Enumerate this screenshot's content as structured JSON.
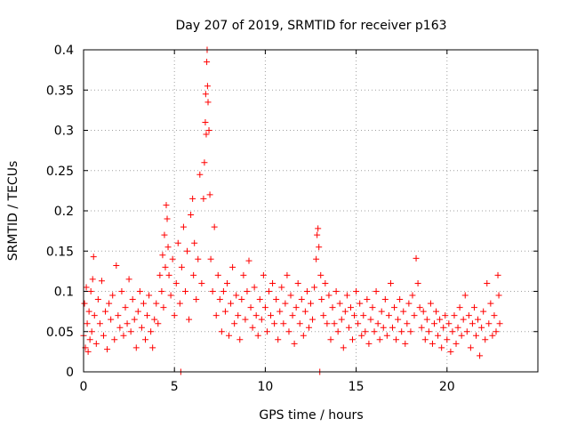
{
  "chart_data": {
    "type": "scatter",
    "title": "Day 207 of 2019, SRMTID for receiver p163",
    "xlabel": "GPS time / hours",
    "ylabel": "SRMTID / TECUs",
    "xlim": [
      0,
      25
    ],
    "ylim": [
      0,
      0.4
    ],
    "x_ticks": [
      0,
      5,
      10,
      15,
      20
    ],
    "x_tick_labels": [
      "0",
      "5",
      "10",
      "15",
      "20"
    ],
    "y_ticks": [
      0,
      0.05,
      0.1,
      0.15,
      0.2,
      0.25,
      0.3,
      0.35,
      0.4
    ],
    "y_tick_labels": [
      "0",
      "0.05",
      "0.1",
      "0.15",
      "0.2",
      "0.25",
      "0.3",
      "0.35",
      "0.4"
    ],
    "grid": true,
    "marker": "+",
    "color": "#ff0000",
    "series": [
      {
        "name": "SRMTID",
        "points": [
          [
            0.0,
            0.045
          ],
          [
            0.05,
            0.085
          ],
          [
            0.1,
            0.03
          ],
          [
            0.15,
            0.105
          ],
          [
            0.2,
            0.06
          ],
          [
            0.25,
            0.025
          ],
          [
            0.3,
            0.075
          ],
          [
            0.35,
            0.04
          ],
          [
            0.4,
            0.1
          ],
          [
            0.45,
            0.05
          ],
          [
            0.5,
            0.115
          ],
          [
            0.55,
            0.143
          ],
          [
            0.6,
            0.07
          ],
          [
            0.7,
            0.035
          ],
          [
            0.8,
            0.09
          ],
          [
            0.9,
            0.06
          ],
          [
            1.0,
            0.113
          ],
          [
            1.1,
            0.045
          ],
          [
            1.2,
            0.075
          ],
          [
            1.3,
            0.028
          ],
          [
            1.4,
            0.085
          ],
          [
            1.5,
            0.065
          ],
          [
            1.6,
            0.095
          ],
          [
            1.7,
            0.04
          ],
          [
            1.8,
            0.132
          ],
          [
            1.9,
            0.07
          ],
          [
            2.0,
            0.055
          ],
          [
            2.1,
            0.1
          ],
          [
            2.2,
            0.045
          ],
          [
            2.3,
            0.08
          ],
          [
            2.4,
            0.06
          ],
          [
            2.5,
            0.115
          ],
          [
            2.6,
            0.05
          ],
          [
            2.7,
            0.09
          ],
          [
            2.8,
            0.065
          ],
          [
            2.9,
            0.03
          ],
          [
            3.0,
            0.075
          ],
          [
            3.1,
            0.1
          ],
          [
            3.2,
            0.055
          ],
          [
            3.3,
            0.085
          ],
          [
            3.4,
            0.04
          ],
          [
            3.5,
            0.07
          ],
          [
            3.6,
            0.095
          ],
          [
            3.7,
            0.05
          ],
          [
            3.8,
            0.03
          ],
          [
            3.9,
            0.065
          ],
          [
            4.0,
            0.085
          ],
          [
            4.1,
            0.06
          ],
          [
            4.2,
            0.12
          ],
          [
            4.3,
            0.1
          ],
          [
            4.35,
            0.145
          ],
          [
            4.4,
            0.08
          ],
          [
            4.45,
            0.17
          ],
          [
            4.5,
            0.13
          ],
          [
            4.55,
            0.207
          ],
          [
            4.6,
            0.19
          ],
          [
            4.65,
            0.155
          ],
          [
            4.7,
            0.12
          ],
          [
            4.8,
            0.095
          ],
          [
            4.9,
            0.14
          ],
          [
            5.0,
            0.07
          ],
          [
            5.1,
            0.11
          ],
          [
            5.2,
            0.16
          ],
          [
            5.3,
            0.085
          ],
          [
            5.35,
            0.0
          ],
          [
            5.4,
            0.13
          ],
          [
            5.5,
            0.18
          ],
          [
            5.6,
            0.1
          ],
          [
            5.7,
            0.15
          ],
          [
            5.8,
            0.065
          ],
          [
            5.9,
            0.195
          ],
          [
            6.0,
            0.215
          ],
          [
            6.05,
            0.12
          ],
          [
            6.1,
            0.16
          ],
          [
            6.2,
            0.09
          ],
          [
            6.3,
            0.14
          ],
          [
            6.4,
            0.245
          ],
          [
            6.5,
            0.11
          ],
          [
            6.6,
            0.215
          ],
          [
            6.65,
            0.26
          ],
          [
            6.7,
            0.31
          ],
          [
            6.72,
            0.345
          ],
          [
            6.75,
            0.295
          ],
          [
            6.78,
            0.385
          ],
          [
            6.8,
            0.4
          ],
          [
            6.82,
            0.355
          ],
          [
            6.85,
            0.335
          ],
          [
            6.9,
            0.3
          ],
          [
            6.95,
            0.22
          ],
          [
            7.0,
            0.14
          ],
          [
            7.1,
            0.1
          ],
          [
            7.2,
            0.18
          ],
          [
            7.3,
            0.07
          ],
          [
            7.4,
            0.12
          ],
          [
            7.5,
            0.09
          ],
          [
            7.6,
            0.05
          ],
          [
            7.7,
            0.1
          ],
          [
            7.8,
            0.075
          ],
          [
            7.9,
            0.11
          ],
          [
            8.0,
            0.045
          ],
          [
            8.1,
            0.085
          ],
          [
            8.2,
            0.13
          ],
          [
            8.3,
            0.06
          ],
          [
            8.4,
            0.095
          ],
          [
            8.5,
            0.07
          ],
          [
            8.6,
            0.04
          ],
          [
            8.7,
            0.09
          ],
          [
            8.8,
            0.12
          ],
          [
            8.9,
            0.065
          ],
          [
            9.0,
            0.1
          ],
          [
            9.1,
            0.138
          ],
          [
            9.2,
            0.08
          ],
          [
            9.3,
            0.055
          ],
          [
            9.4,
            0.105
          ],
          [
            9.5,
            0.07
          ],
          [
            9.6,
            0.045
          ],
          [
            9.7,
            0.09
          ],
          [
            9.8,
            0.065
          ],
          [
            9.9,
            0.12
          ],
          [
            10.0,
            0.08
          ],
          [
            10.1,
            0.05
          ],
          [
            10.2,
            0.1
          ],
          [
            10.3,
            0.07
          ],
          [
            10.4,
            0.11
          ],
          [
            10.5,
            0.06
          ],
          [
            10.6,
            0.09
          ],
          [
            10.7,
            0.04
          ],
          [
            10.8,
            0.075
          ],
          [
            10.9,
            0.105
          ],
          [
            11.0,
            0.06
          ],
          [
            11.1,
            0.085
          ],
          [
            11.2,
            0.12
          ],
          [
            11.3,
            0.05
          ],
          [
            11.4,
            0.095
          ],
          [
            11.5,
            0.07
          ],
          [
            11.6,
            0.035
          ],
          [
            11.7,
            0.08
          ],
          [
            11.8,
            0.11
          ],
          [
            11.9,
            0.06
          ],
          [
            12.0,
            0.09
          ],
          [
            12.1,
            0.045
          ],
          [
            12.2,
            0.075
          ],
          [
            12.3,
            0.1
          ],
          [
            12.4,
            0.055
          ],
          [
            12.5,
            0.085
          ],
          [
            12.6,
            0.065
          ],
          [
            12.7,
            0.105
          ],
          [
            12.8,
            0.14
          ],
          [
            12.85,
            0.17
          ],
          [
            12.9,
            0.178
          ],
          [
            12.95,
            0.155
          ],
          [
            13.0,
            0.0
          ],
          [
            13.05,
            0.12
          ],
          [
            13.1,
            0.09
          ],
          [
            13.2,
            0.07
          ],
          [
            13.3,
            0.11
          ],
          [
            13.4,
            0.06
          ],
          [
            13.5,
            0.095
          ],
          [
            13.6,
            0.04
          ],
          [
            13.7,
            0.08
          ],
          [
            13.8,
            0.06
          ],
          [
            13.9,
            0.1
          ],
          [
            14.0,
            0.05
          ],
          [
            14.1,
            0.085
          ],
          [
            14.2,
            0.065
          ],
          [
            14.3,
            0.03
          ],
          [
            14.4,
            0.075
          ],
          [
            14.5,
            0.095
          ],
          [
            14.6,
            0.055
          ],
          [
            14.7,
            0.08
          ],
          [
            14.8,
            0.04
          ],
          [
            14.9,
            0.07
          ],
          [
            15.0,
            0.1
          ],
          [
            15.1,
            0.06
          ],
          [
            15.2,
            0.085
          ],
          [
            15.3,
            0.045
          ],
          [
            15.4,
            0.07
          ],
          [
            15.5,
            0.05
          ],
          [
            15.6,
            0.09
          ],
          [
            15.7,
            0.035
          ],
          [
            15.8,
            0.065
          ],
          [
            15.9,
            0.08
          ],
          [
            16.0,
            0.05
          ],
          [
            16.1,
            0.1
          ],
          [
            16.2,
            0.06
          ],
          [
            16.3,
            0.04
          ],
          [
            16.4,
            0.075
          ],
          [
            16.5,
            0.055
          ],
          [
            16.6,
            0.09
          ],
          [
            16.7,
            0.045
          ],
          [
            16.8,
            0.07
          ],
          [
            16.9,
            0.11
          ],
          [
            17.0,
            0.055
          ],
          [
            17.1,
            0.08
          ],
          [
            17.2,
            0.04
          ],
          [
            17.3,
            0.065
          ],
          [
            17.4,
            0.09
          ],
          [
            17.5,
            0.05
          ],
          [
            17.6,
            0.075
          ],
          [
            17.7,
            0.035
          ],
          [
            17.8,
            0.06
          ],
          [
            17.9,
            0.085
          ],
          [
            18.0,
            0.05
          ],
          [
            18.1,
            0.095
          ],
          [
            18.2,
            0.07
          ],
          [
            18.3,
            0.141
          ],
          [
            18.4,
            0.11
          ],
          [
            18.5,
            0.08
          ],
          [
            18.6,
            0.055
          ],
          [
            18.7,
            0.075
          ],
          [
            18.8,
            0.04
          ],
          [
            18.9,
            0.065
          ],
          [
            19.0,
            0.05
          ],
          [
            19.1,
            0.085
          ],
          [
            19.2,
            0.035
          ],
          [
            19.3,
            0.06
          ],
          [
            19.4,
            0.075
          ],
          [
            19.5,
            0.045
          ],
          [
            19.6,
            0.065
          ],
          [
            19.7,
            0.03
          ],
          [
            19.8,
            0.055
          ],
          [
            19.9,
            0.07
          ],
          [
            20.0,
            0.04
          ],
          [
            20.1,
            0.06
          ],
          [
            20.2,
            0.025
          ],
          [
            20.3,
            0.05
          ],
          [
            20.4,
            0.07
          ],
          [
            20.5,
            0.035
          ],
          [
            20.6,
            0.055
          ],
          [
            20.7,
            0.08
          ],
          [
            20.8,
            0.045
          ],
          [
            20.9,
            0.065
          ],
          [
            21.0,
            0.095
          ],
          [
            21.1,
            0.05
          ],
          [
            21.2,
            0.07
          ],
          [
            21.3,
            0.03
          ],
          [
            21.4,
            0.06
          ],
          [
            21.5,
            0.08
          ],
          [
            21.6,
            0.045
          ],
          [
            21.7,
            0.065
          ],
          [
            21.8,
            0.02
          ],
          [
            21.9,
            0.055
          ],
          [
            22.0,
            0.075
          ],
          [
            22.1,
            0.04
          ],
          [
            22.2,
            0.11
          ],
          [
            22.3,
            0.06
          ],
          [
            22.4,
            0.085
          ],
          [
            22.5,
            0.045
          ],
          [
            22.6,
            0.07
          ],
          [
            22.7,
            0.05
          ],
          [
            22.8,
            0.12
          ],
          [
            22.85,
            0.095
          ],
          [
            22.9,
            0.06
          ]
        ]
      }
    ]
  }
}
